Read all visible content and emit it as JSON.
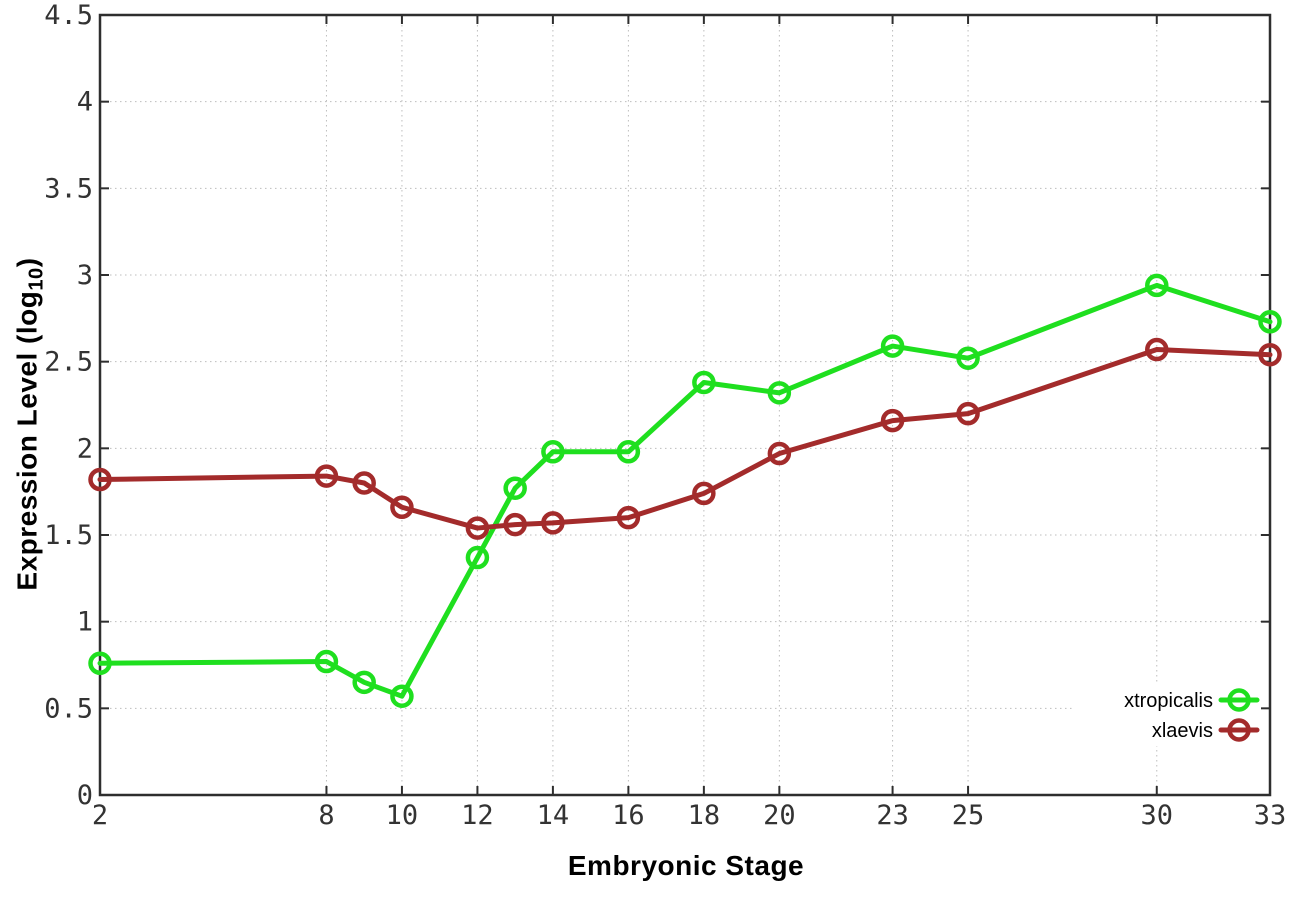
{
  "chart_data": {
    "type": "line",
    "title": "",
    "xlabel": "Embryonic Stage",
    "ylabel": "Expression Level (log10)",
    "ylabel_parts": {
      "prefix": "Expression Level (log",
      "subscript": "10",
      "suffix": ")"
    },
    "x": [
      2,
      8,
      9,
      10,
      12,
      13,
      14,
      16,
      18,
      20,
      23,
      25,
      30,
      33
    ],
    "series": [
      {
        "name": "xtropicalis",
        "color": "#1fdf1f",
        "values": [
          0.76,
          0.77,
          0.65,
          0.57,
          1.37,
          1.77,
          1.98,
          1.98,
          2.38,
          2.32,
          2.59,
          2.52,
          2.94,
          2.73
        ]
      },
      {
        "name": "xlaevis",
        "color": "#a32b2b",
        "values": [
          1.82,
          1.84,
          1.8,
          1.66,
          1.54,
          1.56,
          1.57,
          1.6,
          1.74,
          1.97,
          2.16,
          2.2,
          2.57,
          2.54
        ]
      }
    ],
    "x_ticks": [
      2,
      8,
      10,
      12,
      14,
      16,
      18,
      20,
      23,
      25,
      30,
      33
    ],
    "y_tick_values": [
      0,
      0.5,
      1,
      1.5,
      2,
      2.5,
      3,
      3.5,
      4,
      4.5
    ],
    "y_tick_labels": [
      "0",
      "0.5",
      "1",
      "1.5",
      "2",
      "2.5",
      "3",
      "3.5",
      "4",
      "4.5"
    ],
    "xlim": [
      2,
      33
    ],
    "ylim": [
      0,
      4.5
    ],
    "grid": true,
    "marker": "open-circle",
    "legend_position": "bottom-right-inside"
  },
  "style": {
    "background": "#ffffff",
    "grid_color": "#bdbdbd",
    "axis_color": "#2e2e2e",
    "tick_label_color": "#333333",
    "legend_text_color": "#000000",
    "line_width": 5,
    "marker_radius": 9.5,
    "marker_stroke_width": 4.5
  }
}
